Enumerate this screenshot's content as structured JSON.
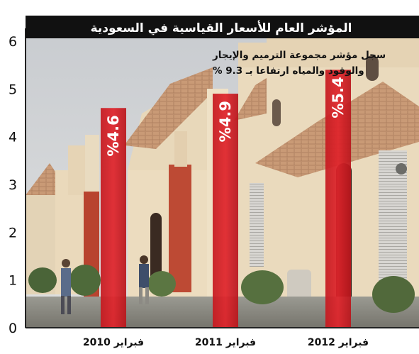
{
  "chart_data": {
    "type": "bar",
    "title": "المؤشر العام للأسعار القياسية في السعودية",
    "annotation": [
      "سجل مؤشر مجموعة الترميم والإيجار",
      "والوقود والمياه ارتفاعا بـ 9.3 %"
    ],
    "categories": [
      "فبراير 2010",
      "فبراير 2011",
      "فبراير 2012"
    ],
    "values": [
      4.6,
      4.9,
      5.4
    ],
    "value_labels": [
      "%4.6",
      "%4.9",
      "%5.4"
    ],
    "ylim": [
      0,
      6
    ],
    "yticks": [
      "0",
      "1",
      "2",
      "3",
      "4",
      "5",
      "6"
    ],
    "bar_color": "#e0242b",
    "title_bar_color": "#111111",
    "grid": false,
    "legend": "none"
  }
}
